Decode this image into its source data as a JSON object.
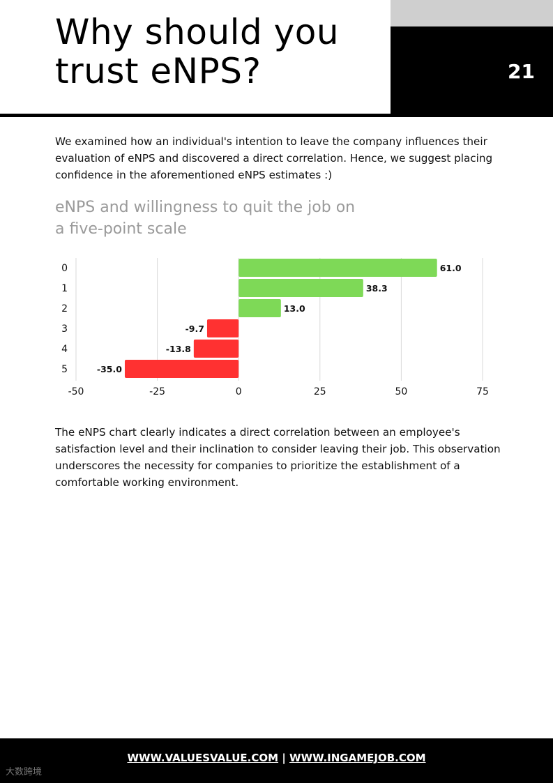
{
  "header": {
    "title_line1": "Why should you",
    "title_line2": "trust eNPS?",
    "page_number": "21"
  },
  "intro": "We examined how an individual's intention to leave the company influences their evaluation of eNPS and discovered a direct correlation. Hence, we suggest placing confidence in the aforementioned eNPS estimates :)",
  "chart_heading_line1": "eNPS and willingness to quit the job on",
  "chart_heading_line2": "a five-point scale",
  "chart_data": {
    "type": "bar",
    "orientation": "horizontal",
    "categories": [
      "0",
      "1",
      "2",
      "3",
      "4",
      "5"
    ],
    "values": [
      61.0,
      38.3,
      13.0,
      -9.7,
      -13.8,
      -35.0
    ],
    "value_labels": [
      "61.0",
      "38.3",
      "13.0",
      "-9.7",
      "-13.8",
      "-35.0"
    ],
    "xlim": [
      -50,
      75
    ],
    "x_ticks": [
      "-50",
      "-25",
      "0",
      "25",
      "50",
      "75"
    ],
    "positive_color": "#7ed957",
    "negative_color": "#ff3131",
    "grid": true
  },
  "conclusion": "The eNPS chart clearly indicates a direct correlation between an employee's satisfaction level and their inclination to consider leaving their job. This observation underscores the necessity for companies to prioritize the establishment of a comfortable working environment.",
  "footer": {
    "link1": "WWW.VALUESVALUE.COM",
    "separator": "|",
    "link2": "WWW.INGAMEJOB.COM"
  },
  "watermark": "大数跨境"
}
